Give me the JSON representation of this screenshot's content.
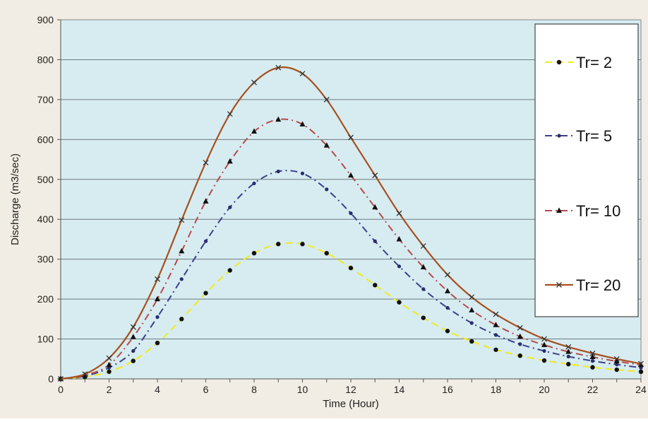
{
  "chart_data": {
    "type": "line",
    "title": "",
    "xlabel": "Time (Hour)",
    "ylabel": "Discharge (m3/sec)",
    "xlim": [
      0,
      24
    ],
    "ylim": [
      0,
      900
    ],
    "x_ticks": [
      0,
      2,
      4,
      6,
      8,
      10,
      12,
      14,
      16,
      18,
      20,
      22,
      24
    ],
    "y_ticks": [
      0,
      100,
      200,
      300,
      400,
      500,
      600,
      700,
      800,
      900
    ],
    "grid": "horizontal",
    "legend_position": "right",
    "plot_background": "#d6ecf1",
    "outer_background": "#f1ede4",
    "x": [
      0,
      1,
      2,
      3,
      4,
      5,
      6,
      7,
      8,
      9,
      10,
      11,
      12,
      13,
      14,
      15,
      16,
      17,
      18,
      19,
      20,
      21,
      22,
      23,
      24
    ],
    "series": [
      {
        "name": "Tr= 2",
        "color": "#f2ea1a",
        "dash": "dash",
        "marker": "circle",
        "values": [
          0,
          5,
          18,
          45,
          90,
          150,
          215,
          272,
          315,
          338,
          338,
          315,
          278,
          235,
          192,
          153,
          120,
          94,
          73,
          58,
          46,
          37,
          29,
          23,
          18
        ]
      },
      {
        "name": "Tr= 5",
        "color": "#3c3f8c",
        "dash": "dashdot",
        "marker": "square",
        "values": [
          0,
          7,
          28,
          70,
          155,
          250,
          345,
          430,
          490,
          520,
          515,
          475,
          415,
          345,
          282,
          225,
          178,
          140,
          110,
          87,
          70,
          56,
          45,
          36,
          28
        ]
      },
      {
        "name": "Tr= 10",
        "color": "#b84a4a",
        "dash": "dashdot",
        "marker": "triangle",
        "values": [
          0,
          9,
          35,
          105,
          200,
          320,
          445,
          545,
          620,
          650,
          638,
          585,
          510,
          430,
          350,
          280,
          220,
          172,
          135,
          106,
          85,
          68,
          55,
          44,
          35
        ]
      },
      {
        "name": "Tr= 20",
        "color": "#a8501f",
        "dash": "solid",
        "marker": "x",
        "values": [
          0,
          12,
          52,
          130,
          250,
          398,
          542,
          664,
          743,
          780,
          765,
          700,
          605,
          510,
          415,
          333,
          261,
          205,
          162,
          128,
          100,
          80,
          64,
          50,
          38
        ]
      }
    ]
  }
}
